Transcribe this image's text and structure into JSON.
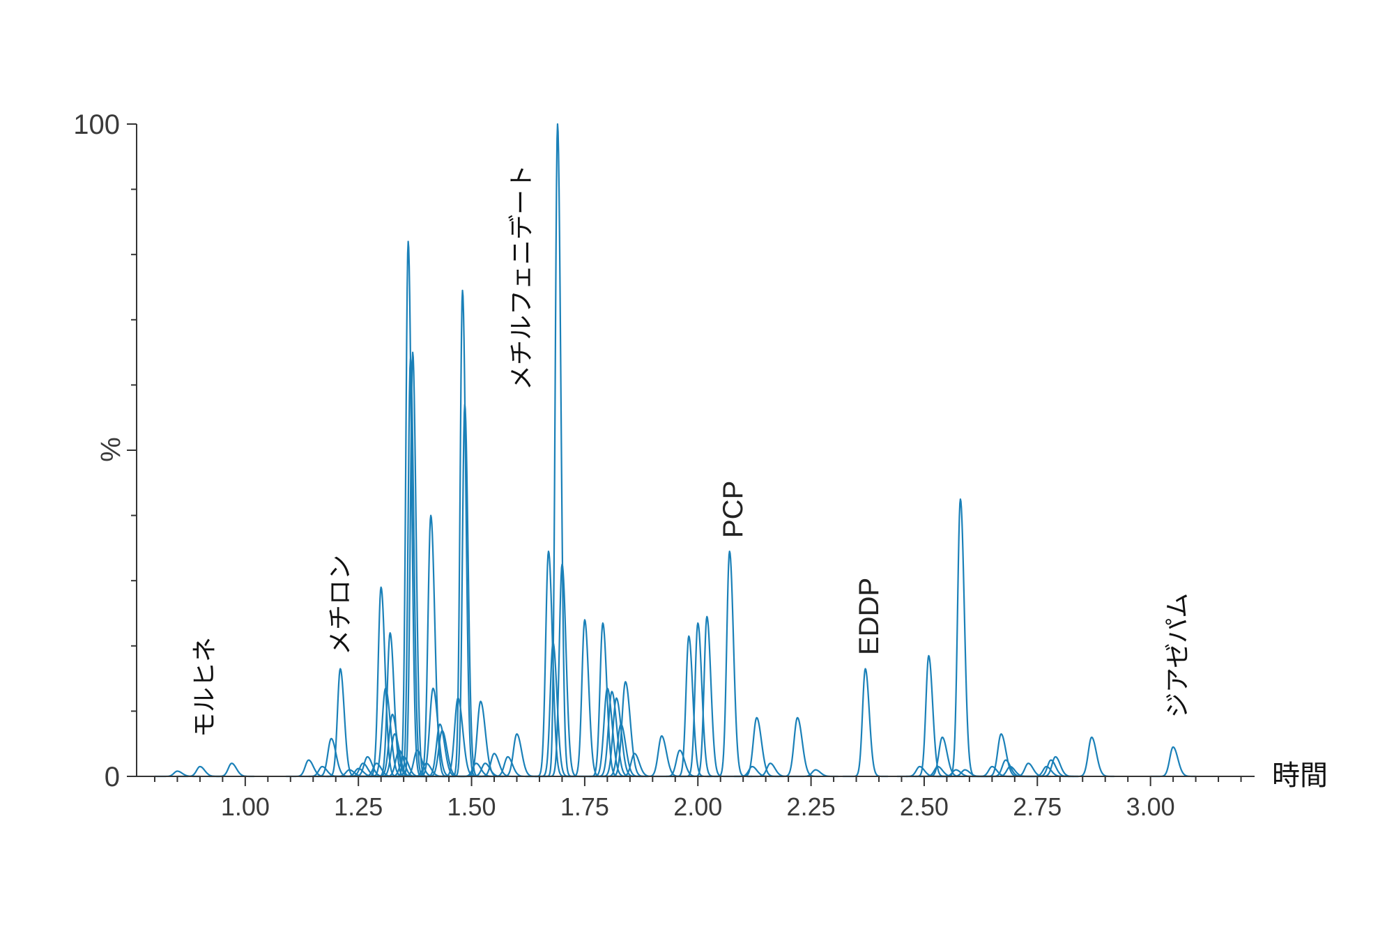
{
  "chart_data": {
    "type": "line",
    "title": "",
    "xlabel": "時間",
    "ylabel": "%",
    "xlim": [
      0.76,
      3.23
    ],
    "ylim": [
      0,
      100
    ],
    "x_ticks": [
      {
        "value": 1.0,
        "label": "1.00"
      },
      {
        "value": 1.25,
        "label": "1.25"
      },
      {
        "value": 1.5,
        "label": "1.50"
      },
      {
        "value": 1.75,
        "label": "1.75"
      },
      {
        "value": 2.0,
        "label": "2.00"
      },
      {
        "value": 2.25,
        "label": "2.25"
      },
      {
        "value": 2.5,
        "label": "2.50"
      },
      {
        "value": 2.75,
        "label": "2.75"
      },
      {
        "value": 3.0,
        "label": "3.00"
      }
    ],
    "y_ticks": [
      {
        "value": 0,
        "label": "0"
      },
      {
        "value": 100,
        "label": "100"
      }
    ],
    "color": "#1a80b8",
    "peaks": [
      [
        0.85,
        0.8
      ],
      [
        0.9,
        1.5
      ],
      [
        0.97,
        2.0
      ],
      [
        1.14,
        2.5
      ],
      [
        1.17,
        1.5
      ],
      [
        1.19,
        5.8
      ],
      [
        1.21,
        16.5
      ],
      [
        1.23,
        1.0
      ],
      [
        1.25,
        1.2
      ],
      [
        1.26,
        2.0
      ],
      [
        1.27,
        3.0
      ],
      [
        1.29,
        2.0
      ],
      [
        1.3,
        29.0
      ],
      [
        1.31,
        13.5
      ],
      [
        1.32,
        22.0
      ],
      [
        1.325,
        9.5
      ],
      [
        1.33,
        6.5
      ],
      [
        1.34,
        4.0
      ],
      [
        1.35,
        3.0
      ],
      [
        1.36,
        82.0
      ],
      [
        1.365,
        64.0
      ],
      [
        1.37,
        65.0
      ],
      [
        1.38,
        4.0
      ],
      [
        1.4,
        2.0
      ],
      [
        1.41,
        40.0
      ],
      [
        1.415,
        13.5
      ],
      [
        1.43,
        8.0
      ],
      [
        1.435,
        7.0
      ],
      [
        1.47,
        12.0
      ],
      [
        1.48,
        74.5
      ],
      [
        1.485,
        57.0
      ],
      [
        1.51,
        2.0
      ],
      [
        1.52,
        11.5
      ],
      [
        1.53,
        2.0
      ],
      [
        1.55,
        3.5
      ],
      [
        1.58,
        3.0
      ],
      [
        1.6,
        6.5
      ],
      [
        1.67,
        34.5
      ],
      [
        1.68,
        20.5
      ],
      [
        1.69,
        100.0
      ],
      [
        1.7,
        32.5
      ],
      [
        1.75,
        24.0
      ],
      [
        1.79,
        23.5
      ],
      [
        1.8,
        13.5
      ],
      [
        1.81,
        13.0
      ],
      [
        1.82,
        12.0
      ],
      [
        1.83,
        8.0
      ],
      [
        1.84,
        14.5
      ],
      [
        1.86,
        3.5
      ],
      [
        1.92,
        6.2
      ],
      [
        1.96,
        4.0
      ],
      [
        1.98,
        21.5
      ],
      [
        2.0,
        23.5
      ],
      [
        2.02,
        24.5
      ],
      [
        2.07,
        34.5
      ],
      [
        2.12,
        1.5
      ],
      [
        2.13,
        9.0
      ],
      [
        2.16,
        2.0
      ],
      [
        2.22,
        9.0
      ],
      [
        2.26,
        1.0
      ],
      [
        2.37,
        16.5
      ],
      [
        2.49,
        1.5
      ],
      [
        2.51,
        18.5
      ],
      [
        2.53,
        1.5
      ],
      [
        2.54,
        6.0
      ],
      [
        2.57,
        1.0
      ],
      [
        2.58,
        42.5
      ],
      [
        2.59,
        1.0
      ],
      [
        2.65,
        1.5
      ],
      [
        2.67,
        6.5
      ],
      [
        2.68,
        2.5
      ],
      [
        2.69,
        1.5
      ],
      [
        2.73,
        2.0
      ],
      [
        2.77,
        1.5
      ],
      [
        2.78,
        2.5
      ],
      [
        2.79,
        3.0
      ],
      [
        2.87,
        6.0
      ],
      [
        3.05,
        4.5
      ]
    ],
    "annotations": [
      {
        "text": "モルヒネ",
        "x": 0.91
      },
      {
        "text": "メチロン",
        "x": 1.21
      },
      {
        "text": "メチルフェニデート",
        "x": 1.61
      },
      {
        "text": "PCP",
        "x": 2.08
      },
      {
        "text": "EDDP",
        "x": 2.38
      },
      {
        "text": "ジアゼパム",
        "x": 3.06
      }
    ]
  }
}
